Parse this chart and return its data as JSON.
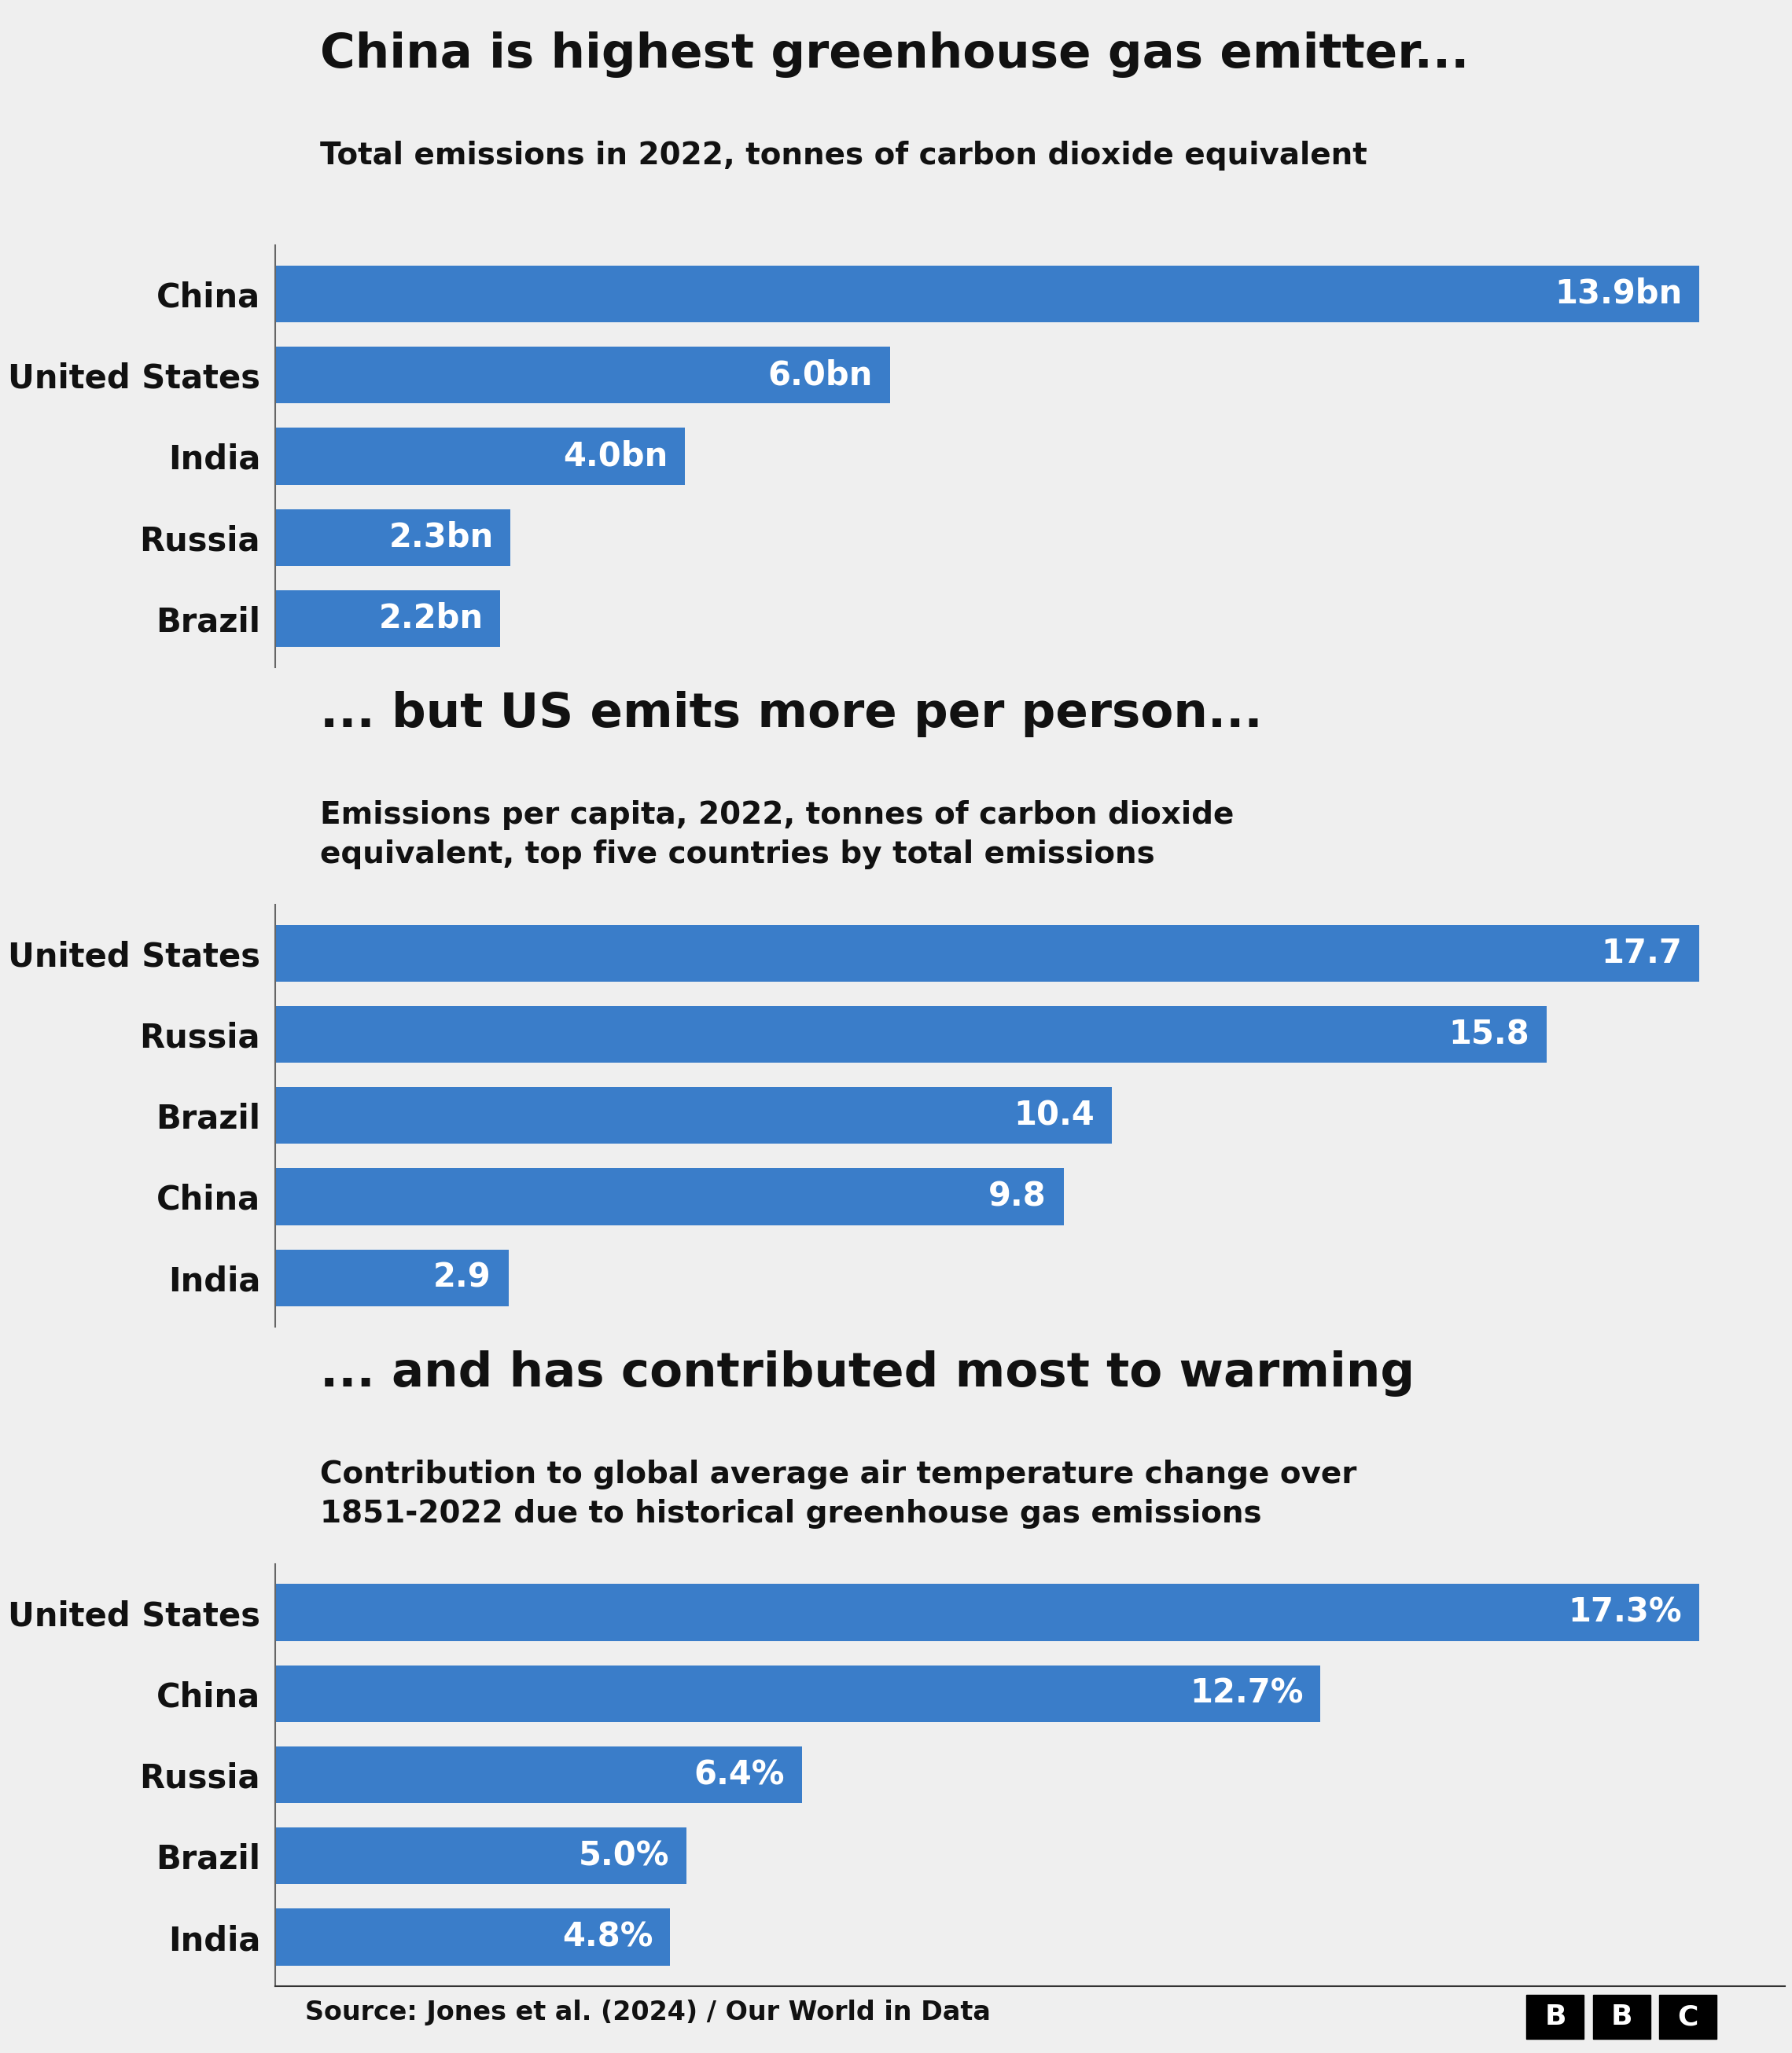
{
  "background_color": "#efefef",
  "bar_color": "#3A7DC9",
  "text_color_dark": "#111111",
  "text_color_white": "#ffffff",
  "chart1": {
    "title": "China is highest greenhouse gas emitter...",
    "subtitle": "Total emissions in 2022, tonnes of carbon dioxide equivalent",
    "countries": [
      "China",
      "United States",
      "India",
      "Russia",
      "Brazil"
    ],
    "values": [
      13.9,
      6.0,
      4.0,
      2.3,
      2.2
    ],
    "labels": [
      "13.9bn",
      "6.0bn",
      "4.0bn",
      "2.3bn",
      "2.2bn"
    ]
  },
  "chart2": {
    "title": "... but US emits more per person...",
    "subtitle": "Emissions per capita, 2022, tonnes of carbon dioxide\nequivalent, top five countries by total emissions",
    "countries": [
      "United States",
      "Russia",
      "Brazil",
      "China",
      "India"
    ],
    "values": [
      17.7,
      15.8,
      10.4,
      9.8,
      2.9
    ],
    "labels": [
      "17.7",
      "15.8",
      "10.4",
      "9.8",
      "2.9"
    ]
  },
  "chart3": {
    "title": "... and has contributed most to warming",
    "subtitle": "Contribution to global average air temperature change over\n1851-2022 due to historical greenhouse gas emissions",
    "countries": [
      "United States",
      "China",
      "Russia",
      "Brazil",
      "India"
    ],
    "values": [
      17.3,
      12.7,
      6.4,
      5.0,
      4.8
    ],
    "labels": [
      "17.3%",
      "12.7%",
      "6.4%",
      "5.0%",
      "4.8%"
    ]
  },
  "source_text": "Source: Jones et al. (2024) / Our World in Data",
  "title_fontsize": 44,
  "subtitle_fontsize": 28,
  "label_fontsize": 30,
  "country_fontsize": 30,
  "source_fontsize": 24
}
